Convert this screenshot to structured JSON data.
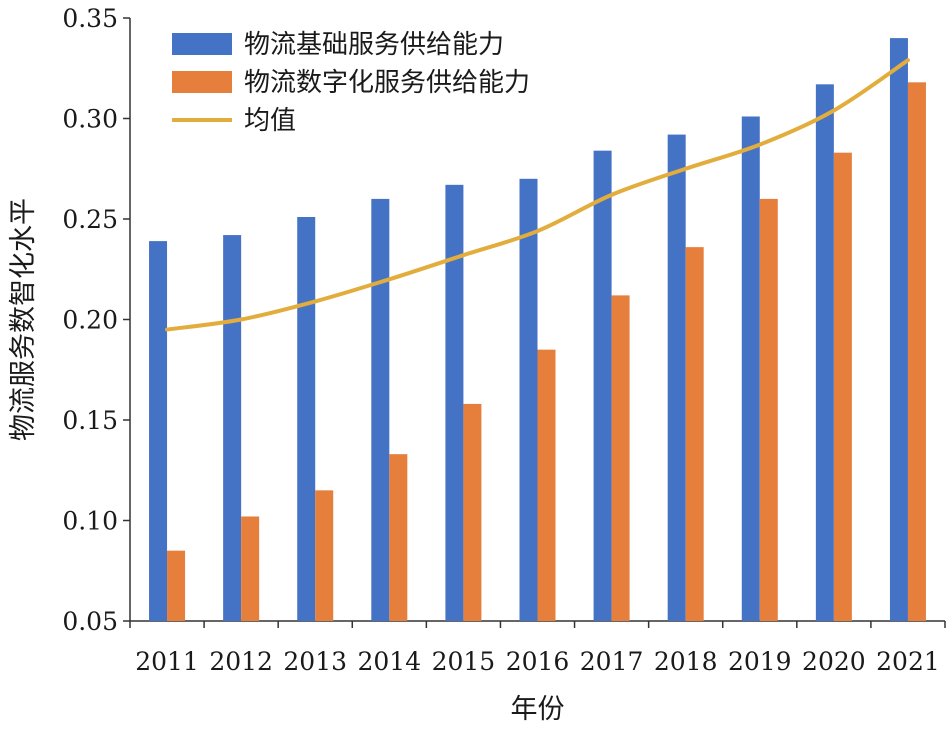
{
  "chart_data": {
    "type": "bar",
    "title": "",
    "xlabel": "年份",
    "ylabel": "物流服务数智化水平",
    "ylim": [
      0.05,
      0.35
    ],
    "yticks": [
      "0.05",
      "0.10",
      "0.15",
      "0.20",
      "0.25",
      "0.30",
      "0.35"
    ],
    "ytick_values": [
      0.05,
      0.1,
      0.15,
      0.2,
      0.25,
      0.3,
      0.35
    ],
    "categories": [
      "2011",
      "2012",
      "2013",
      "2014",
      "2015",
      "2016",
      "2017",
      "2018",
      "2019",
      "2020",
      "2021"
    ],
    "series": [
      {
        "name": "物流基础服务供给能力",
        "type": "bar",
        "color": "#4472c4",
        "values": [
          0.239,
          0.242,
          0.251,
          0.26,
          0.267,
          0.27,
          0.284,
          0.292,
          0.301,
          0.317,
          0.34
        ]
      },
      {
        "name": "物流数字化服务供给能力",
        "type": "bar",
        "color": "#e67e3c",
        "values": [
          0.085,
          0.102,
          0.115,
          0.133,
          0.158,
          0.185,
          0.212,
          0.236,
          0.26,
          0.283,
          0.318
        ]
      },
      {
        "name": "均值",
        "type": "line",
        "color": "#e2ad3c",
        "values": [
          0.195,
          0.2,
          0.209,
          0.22,
          0.232,
          0.244,
          0.262,
          0.275,
          0.287,
          0.304,
          0.329
        ]
      }
    ],
    "legend": "top-left",
    "grid": false
  }
}
